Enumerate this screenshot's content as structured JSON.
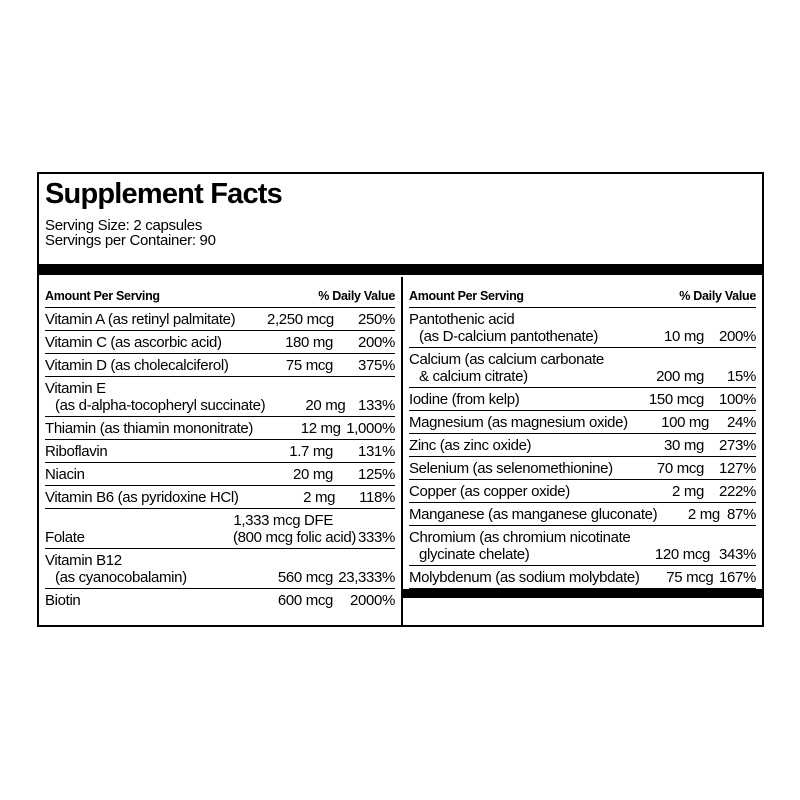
{
  "title": "Supplement Facts",
  "serving_size": "Serving Size: 2 capsules",
  "servings_per_container": "Servings per Container:  90",
  "columns": [
    {
      "header": {
        "amount": "Amount Per Serving",
        "dv": "% Daily Value"
      },
      "rows": [
        {
          "name": [
            "Vitamin A (as retinyl palmitate)"
          ],
          "amount": [
            "2,250 mcg"
          ],
          "dv": "250%"
        },
        {
          "name": [
            "Vitamin C (as ascorbic acid)"
          ],
          "amount": [
            "180 mg"
          ],
          "dv": "200%"
        },
        {
          "name": [
            "Vitamin D (as cholecalciferol)"
          ],
          "amount": [
            "75 mcg"
          ],
          "dv": "375%"
        },
        {
          "name": [
            "Vitamin E",
            "(as d-alpha-tocopheryl succinate)"
          ],
          "amount": [
            "20 mg"
          ],
          "dv": "133%"
        },
        {
          "name": [
            "Thiamin (as thiamin mononitrate)"
          ],
          "amount": [
            "12 mg"
          ],
          "dv": "1,000%"
        },
        {
          "name": [
            "Riboflavin"
          ],
          "amount": [
            "1.7 mg"
          ],
          "dv": "131%"
        },
        {
          "name": [
            "Niacin"
          ],
          "amount": [
            "20 mg"
          ],
          "dv": "125%"
        },
        {
          "name": [
            "Vitamin B6 (as pyridoxine HCl)"
          ],
          "amount": [
            "2 mg"
          ],
          "dv": "118%"
        },
        {
          "name": [
            "Folate"
          ],
          "amount": [
            "1,333 mcg DFE",
            "(800 mcg folic acid)"
          ],
          "dv": "333%"
        },
        {
          "name": [
            "Vitamin B12",
            "(as cyanocobalamin)"
          ],
          "amount": [
            "560 mcg"
          ],
          "dv": "23,333%"
        },
        {
          "name": [
            "Biotin"
          ],
          "amount": [
            "600 mcg"
          ],
          "dv": "2000%"
        }
      ]
    },
    {
      "header": {
        "amount": "Amount Per Serving",
        "dv": "% Daily Value"
      },
      "rows": [
        {
          "name": [
            "Pantothenic acid",
            "(as D-calcium pantothenate)"
          ],
          "amount": [
            "10 mg"
          ],
          "dv": "200%"
        },
        {
          "name": [
            "Calcium (as calcium carbonate",
            "& calcium citrate)"
          ],
          "amount": [
            "200 mg"
          ],
          "dv": "15%"
        },
        {
          "name": [
            "Iodine (from kelp)"
          ],
          "amount": [
            "150 mcg"
          ],
          "dv": "100%"
        },
        {
          "name": [
            "Magnesium (as magnesium oxide)"
          ],
          "amount": [
            "100 mg"
          ],
          "dv": "24%"
        },
        {
          "name": [
            "Zinc (as zinc oxide)"
          ],
          "amount": [
            "30 mg"
          ],
          "dv": "273%"
        },
        {
          "name": [
            "Selenium (as selenomethionine)"
          ],
          "amount": [
            "70 mcg"
          ],
          "dv": "127%"
        },
        {
          "name": [
            "Copper (as copper oxide)"
          ],
          "amount": [
            "2 mg"
          ],
          "dv": "222%"
        },
        {
          "name": [
            "Manganese (as manganese gluconate)"
          ],
          "amount": [
            "2 mg"
          ],
          "dv": "87%"
        },
        {
          "name": [
            "Chromium (as chromium nicotinate",
            "glycinate chelate)"
          ],
          "amount": [
            "120 mcg"
          ],
          "dv": "343%"
        },
        {
          "name": [
            "Molybdenum (as sodium molybdate)"
          ],
          "amount": [
            "75 mcg"
          ],
          "dv": "167%"
        }
      ]
    }
  ]
}
